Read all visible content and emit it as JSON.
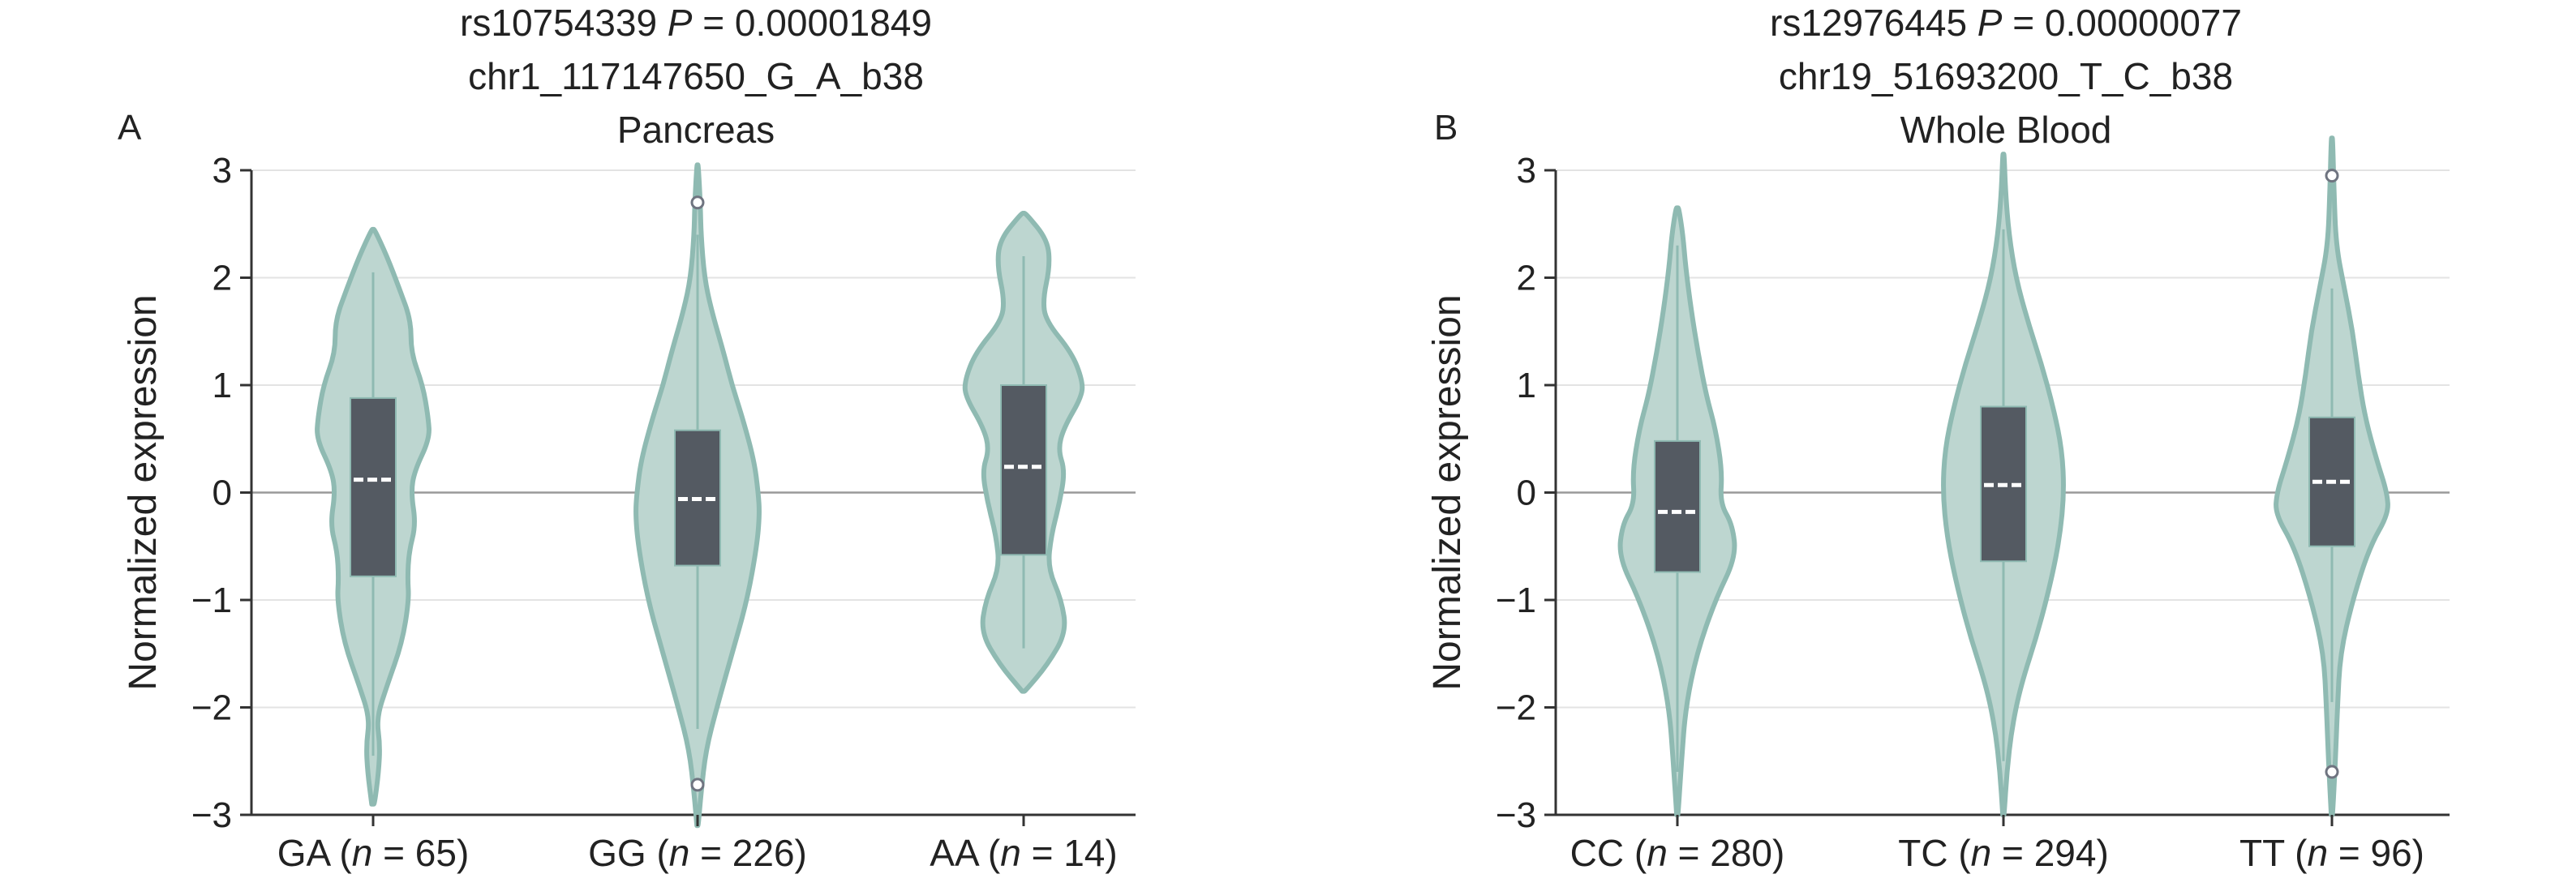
{
  "colors": {
    "violin_fill": "#bdd6d0",
    "violin_stroke": "#8fbab2",
    "box_fill": "#545a62",
    "median": "#ffffff",
    "grid": "#e3e3e3",
    "zero_line": "#9a9a9a",
    "axis": "#333333",
    "outlier_stroke": "#6f7480"
  },
  "chart_data": [
    {
      "type": "violin",
      "panel_label": "A",
      "title_lines": [
        "rs10754339 P = 0.00001849",
        "chr1_117147650_G_A_b38",
        "Pancreas"
      ],
      "title_snp": "rs10754339",
      "title_p_symbol": "P",
      "title_p_value": "= 0.00001849",
      "title_variant": "chr1_117147650_G_A_b38",
      "title_tissue": "Pancreas",
      "ylabel": "Normalized expression",
      "ylim": [
        -3,
        3
      ],
      "yticks": [
        3,
        2,
        1,
        0,
        -1,
        -2,
        -3
      ],
      "ytick_labels": [
        "3",
        "2",
        "1",
        "0",
        "−1",
        "−2",
        "−3"
      ],
      "categories": [
        {
          "genotype": "GA",
          "n_label": "n",
          "n_text": " = 65)",
          "label": "GA (n = 65)",
          "min": -2.9,
          "max": 2.45,
          "whisker_low": -2.45,
          "whisker_high": 2.05,
          "q1": -0.78,
          "median": 0.12,
          "q3": 0.88,
          "outliers": [],
          "density": [
            [
              -2.9,
              0.02
            ],
            [
              -2.6,
              0.08
            ],
            [
              -2.35,
              0.1
            ],
            [
              -2.1,
              0.05
            ],
            [
              -1.8,
              0.2
            ],
            [
              -1.4,
              0.42
            ],
            [
              -1.0,
              0.52
            ],
            [
              -0.8,
              0.5
            ],
            [
              -0.55,
              0.52
            ],
            [
              -0.3,
              0.62
            ],
            [
              0.0,
              0.55
            ],
            [
              0.2,
              0.6
            ],
            [
              0.5,
              0.82
            ],
            [
              0.7,
              0.8
            ],
            [
              1.0,
              0.72
            ],
            [
              1.3,
              0.55
            ],
            [
              1.6,
              0.55
            ],
            [
              1.9,
              0.38
            ],
            [
              2.2,
              0.2
            ],
            [
              2.45,
              0.02
            ]
          ]
        },
        {
          "genotype": "GG",
          "n_label": "n",
          "n_text": " = 226)",
          "label": "GG (n = 226)",
          "min": -3.1,
          "max": 3.05,
          "whisker_low": -2.2,
          "whisker_high": 2.4,
          "q1": -0.68,
          "median": -0.06,
          "q3": 0.58,
          "outliers": [
            2.7,
            -2.72
          ],
          "density": [
            [
              -3.1,
              0.01
            ],
            [
              -2.8,
              0.05
            ],
            [
              -2.4,
              0.12
            ],
            [
              -2.0,
              0.28
            ],
            [
              -1.5,
              0.5
            ],
            [
              -1.0,
              0.72
            ],
            [
              -0.5,
              0.86
            ],
            [
              -0.2,
              0.9
            ],
            [
              0.0,
              0.88
            ],
            [
              0.3,
              0.82
            ],
            [
              0.7,
              0.65
            ],
            [
              1.0,
              0.5
            ],
            [
              1.3,
              0.38
            ],
            [
              1.7,
              0.2
            ],
            [
              2.0,
              0.1
            ],
            [
              2.4,
              0.05
            ],
            [
              2.7,
              0.04
            ],
            [
              3.05,
              0.01
            ]
          ]
        },
        {
          "genotype": "AA",
          "n_label": "n",
          "n_text": " = 14)",
          "label": "AA (n = 14)",
          "min": -1.85,
          "max": 2.6,
          "whisker_low": -1.45,
          "whisker_high": 2.2,
          "q1": -0.58,
          "median": 0.24,
          "q3": 1.0,
          "outliers": [],
          "density": [
            [
              -1.85,
              0.02
            ],
            [
              -1.6,
              0.35
            ],
            [
              -1.3,
              0.62
            ],
            [
              -1.0,
              0.55
            ],
            [
              -0.7,
              0.35
            ],
            [
              -0.4,
              0.4
            ],
            [
              -0.1,
              0.52
            ],
            [
              0.2,
              0.6
            ],
            [
              0.4,
              0.5
            ],
            [
              0.6,
              0.58
            ],
            [
              0.9,
              0.85
            ],
            [
              1.05,
              0.85
            ],
            [
              1.3,
              0.7
            ],
            [
              1.6,
              0.32
            ],
            [
              1.8,
              0.28
            ],
            [
              2.1,
              0.38
            ],
            [
              2.35,
              0.35
            ],
            [
              2.6,
              0.03
            ]
          ]
        }
      ]
    },
    {
      "type": "violin",
      "panel_label": "B",
      "title_lines": [
        "rs12976445 P = 0.00000077",
        "chr19_51693200_T_C_b38",
        "Whole Blood"
      ],
      "title_snp": "rs12976445",
      "title_p_symbol": "P",
      "title_p_value": "= 0.00000077",
      "title_variant": "chr19_51693200_T_C_b38",
      "title_tissue": "Whole Blood",
      "ylabel": "Normalized expression",
      "ylim": [
        -3,
        3
      ],
      "yticks": [
        3,
        2,
        1,
        0,
        -1,
        -2,
        -3
      ],
      "ytick_labels": [
        "3",
        "2",
        "1",
        "0",
        "−1",
        "−2",
        "−3"
      ],
      "categories": [
        {
          "genotype": "CC",
          "n_label": "n",
          "n_text": " = 280)",
          "label": "CC (n = 280)",
          "min": -3.0,
          "max": 2.65,
          "whisker_low": -2.6,
          "whisker_high": 2.3,
          "q1": -0.74,
          "median": -0.18,
          "q3": 0.48,
          "outliers": [],
          "density": [
            [
              -3.0,
              0.01
            ],
            [
              -2.5,
              0.06
            ],
            [
              -2.0,
              0.12
            ],
            [
              -1.5,
              0.28
            ],
            [
              -1.0,
              0.55
            ],
            [
              -0.6,
              0.85
            ],
            [
              -0.3,
              0.8
            ],
            [
              -0.1,
              0.62
            ],
            [
              0.2,
              0.65
            ],
            [
              0.6,
              0.55
            ],
            [
              0.9,
              0.42
            ],
            [
              1.3,
              0.3
            ],
            [
              1.7,
              0.2
            ],
            [
              2.1,
              0.12
            ],
            [
              2.4,
              0.08
            ],
            [
              2.65,
              0.02
            ]
          ]
        },
        {
          "genotype": "TC",
          "n_label": "n",
          "n_text": " = 294)",
          "label": "TC (n = 294)",
          "min": -3.0,
          "max": 3.15,
          "whisker_low": -2.5,
          "whisker_high": 2.45,
          "q1": -0.64,
          "median": 0.07,
          "q3": 0.8,
          "outliers": [],
          "density": [
            [
              -3.0,
              0.01
            ],
            [
              -2.6,
              0.05
            ],
            [
              -2.2,
              0.12
            ],
            [
              -1.8,
              0.25
            ],
            [
              -1.3,
              0.5
            ],
            [
              -0.8,
              0.7
            ],
            [
              -0.4,
              0.82
            ],
            [
              0.0,
              0.88
            ],
            [
              0.4,
              0.85
            ],
            [
              0.8,
              0.72
            ],
            [
              1.2,
              0.55
            ],
            [
              1.6,
              0.35
            ],
            [
              2.0,
              0.18
            ],
            [
              2.4,
              0.08
            ],
            [
              2.8,
              0.03
            ],
            [
              3.15,
              0.01
            ]
          ]
        },
        {
          "genotype": "TT",
          "n_label": "n",
          "n_text": " = 96)",
          "label": "TT (n = 96)",
          "min": -3.0,
          "max": 3.3,
          "whisker_low": -1.95,
          "whisker_high": 1.9,
          "q1": -0.5,
          "median": 0.1,
          "q3": 0.7,
          "outliers": [
            2.95,
            -2.6
          ],
          "density": [
            [
              -3.0,
              0.01
            ],
            [
              -2.5,
              0.05
            ],
            [
              -2.0,
              0.08
            ],
            [
              -1.5,
              0.12
            ],
            [
              -1.0,
              0.3
            ],
            [
              -0.5,
              0.55
            ],
            [
              -0.2,
              0.82
            ],
            [
              0.0,
              0.8
            ],
            [
              0.3,
              0.65
            ],
            [
              0.7,
              0.48
            ],
            [
              1.1,
              0.38
            ],
            [
              1.5,
              0.3
            ],
            [
              1.9,
              0.18
            ],
            [
              2.3,
              0.06
            ],
            [
              2.8,
              0.03
            ],
            [
              3.3,
              0.01
            ]
          ]
        }
      ]
    }
  ]
}
